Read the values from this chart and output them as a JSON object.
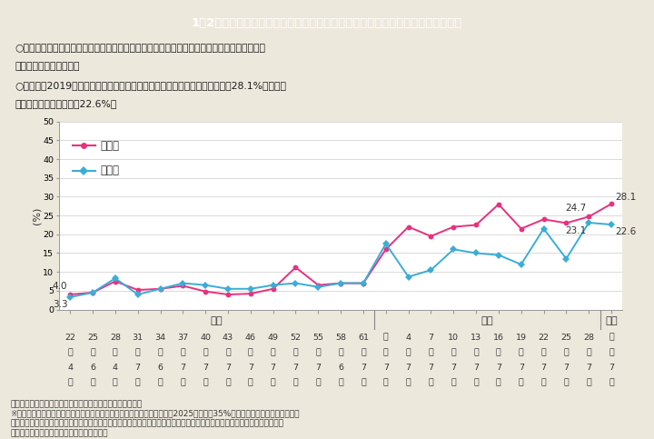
{
  "title": "1－2図　参議院議員通常選挙における候補者、当選者に占める女性の割合の推移",
  "title_bg_color": "#009FC0",
  "title_text_color": "#FFFFFF",
  "subtitle_lines": [
    "○参議院議員通常選挙における候補者及び当選者に占める女性の割合は上昇傾向にあるが、低",
    "　い水準となっている。",
    "○令和元（2019）年７月執行の通常選挙では、候補者に占める女性の割合は28.1%、当選者",
    "　に占める女性の割合は22.6%。"
  ],
  "footnote_lines": [
    "（備考）　総務省「参議院議員通常選挙結果調」より作成。",
    "※　第５次男女共同参画基本計画において、候補者に占める女性の割合を2025年までに35%とする目標を設定しているが、",
    "　　これは、政府が政党に働きかける際に念頭に置く努力目標であり、政党の自律的行動を制約するものではなく、また、各",
    "　　政党が自ら達成を目指す目標ではない。"
  ],
  "ylabel": "(%)",
  "ylim": [
    0,
    50
  ],
  "yticks": [
    0,
    5,
    10,
    15,
    20,
    25,
    30,
    35,
    40,
    45,
    50
  ],
  "x_labels_row1": [
    "22",
    "25",
    "28",
    "31",
    "34",
    "37",
    "40",
    "43",
    "46",
    "49",
    "52",
    "55",
    "58",
    "61",
    "元",
    "4",
    "7",
    "10",
    "13",
    "16",
    "19",
    "22",
    "25",
    "28",
    "元"
  ],
  "x_labels_row2": [
    "年",
    "年",
    "年",
    "年",
    "年",
    "年",
    "年",
    "年",
    "年",
    "年",
    "年",
    "年",
    "年",
    "年",
    "年",
    "年",
    "年",
    "年",
    "年",
    "年",
    "年",
    "年",
    "年",
    "年",
    "年"
  ],
  "x_labels_row3": [
    "4",
    "6",
    "4",
    "7",
    "6",
    "7",
    "7",
    "7",
    "7",
    "7",
    "7",
    "7",
    "6",
    "7",
    "7",
    "7",
    "7",
    "7",
    "7",
    "7",
    "7",
    "7",
    "7",
    "7",
    "7"
  ],
  "x_labels_row4": [
    "月",
    "月",
    "月",
    "月",
    "月",
    "月",
    "月",
    "月",
    "月",
    "月",
    "月",
    "月",
    "月",
    "月",
    "月",
    "月",
    "月",
    "月",
    "月",
    "月",
    "月",
    "月",
    "月",
    "月",
    "月"
  ],
  "eras": [
    {
      "label": "昭和",
      "start": 0,
      "end": 13
    },
    {
      "label": "平成",
      "start": 14,
      "end": 23
    },
    {
      "label": "令和",
      "start": 24,
      "end": 24
    }
  ],
  "candidates": [
    4.0,
    4.5,
    7.5,
    5.2,
    5.5,
    6.3,
    4.8,
    4.0,
    4.2,
    5.5,
    11.2,
    6.5,
    7.0,
    7.0,
    16.0,
    22.0,
    19.5,
    22.0,
    22.5,
    28.0,
    21.5,
    24.0,
    23.0,
    24.7,
    28.1
  ],
  "winners": [
    3.3,
    4.5,
    8.3,
    4.0,
    5.5,
    7.0,
    6.5,
    5.5,
    5.5,
    6.5,
    7.0,
    6.0,
    7.0,
    7.0,
    17.5,
    8.7,
    10.5,
    16.0,
    15.0,
    14.5,
    12.0,
    21.5,
    13.5,
    23.1,
    22.6
  ],
  "candidate_color": "#E8317F",
  "winner_color": "#3BADD6",
  "candidate_label": "候補者",
  "winner_label": "当選者",
  "bg_color": "#EDE8DC",
  "plot_bg_color": "#FFFFFF",
  "subtitle_bg": "#FFFFFF",
  "subtitle_border": "#BBBBBB"
}
